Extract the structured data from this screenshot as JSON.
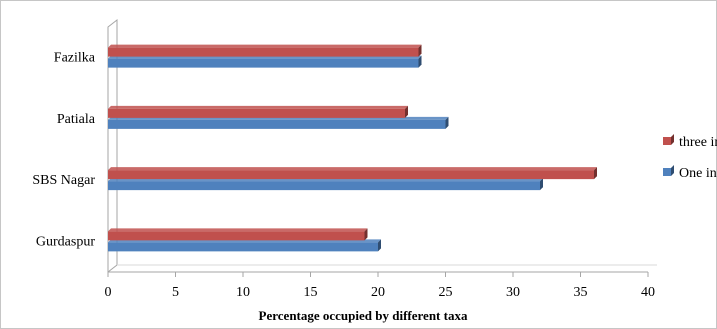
{
  "chart_data": {
    "type": "bar",
    "orientation": "horizontal",
    "categories": [
      "Gurdaspur",
      "SBS Nagar",
      "Patiala",
      "Fazilka"
    ],
    "series": [
      {
        "name": "One inch",
        "values": [
          20,
          32,
          25,
          23
        ],
        "color": "#4F81BD"
      },
      {
        "name": "three inch",
        "values": [
          19,
          36,
          22,
          23
        ],
        "color": "#C0504D"
      }
    ],
    "xlabel": "Percentage occupied by different taxa",
    "ylabel": "",
    "xlim": [
      0,
      40
    ],
    "xticks": [
      "0",
      "5",
      "10",
      "15",
      "20",
      "25",
      "30",
      "35",
      "40"
    ],
    "grid": false,
    "legend_position": "right"
  }
}
